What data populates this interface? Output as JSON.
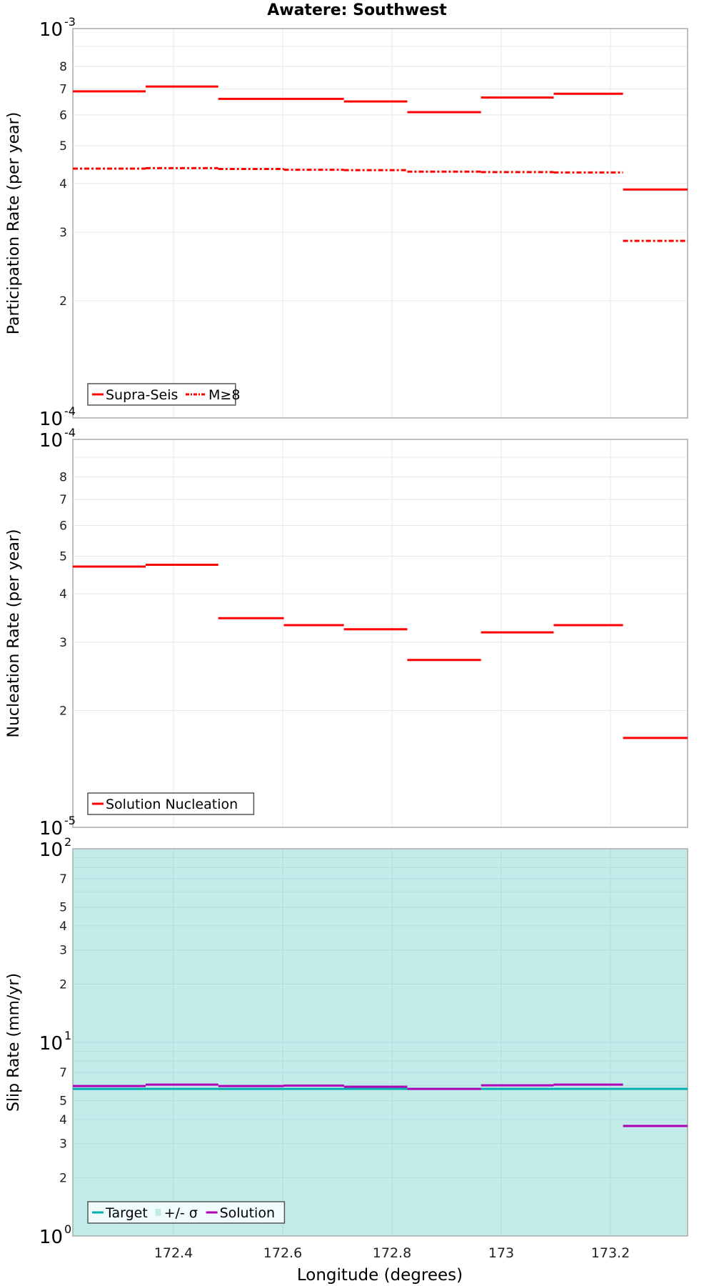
{
  "title": "Awatere: Southwest",
  "colors": {
    "red": "#ff0000",
    "teal": "#00b0b0",
    "magenta": "#b000b8",
    "band": "#c2ebea"
  },
  "chart_data": [
    {
      "type": "line",
      "step": true,
      "title": "Awatere: Southwest",
      "xlabel": "Longitude (degrees)",
      "ylabel": "Participation Rate (per year)",
      "yscale": "log",
      "ylim": [
        0.0001,
        0.001
      ],
      "xlim": [
        172.214,
        173.345
      ],
      "x_edges": [
        172.214,
        172.349,
        172.482,
        172.602,
        172.712,
        172.828,
        172.963,
        173.096,
        173.223,
        173.345
      ],
      "yticks": [
        "10^-4",
        "2",
        "3",
        "4",
        "5",
        "6",
        "7",
        "8",
        "10^-3"
      ],
      "grid": true,
      "legend_position": "lower left",
      "series": [
        {
          "name": "Supra-Seis",
          "style": "solid",
          "color": "#ff0000",
          "values": [
            0.00069,
            0.00071,
            0.00066,
            0.00066,
            0.00065,
            0.00061,
            0.000665,
            0.00068,
            0.000386
          ]
        },
        {
          "name": "M≥8",
          "style": "dash-dot",
          "color": "#ff0000",
          "values": [
            0.000437,
            0.000438,
            0.000436,
            0.000434,
            0.000433,
            0.000429,
            0.000428,
            0.000427,
            0.000285
          ]
        }
      ]
    },
    {
      "type": "line",
      "step": true,
      "xlabel": "Longitude (degrees)",
      "ylabel": "Nucleation Rate (per year)",
      "yscale": "log",
      "ylim": [
        1e-05,
        0.0001
      ],
      "x_edges": [
        172.214,
        172.349,
        172.482,
        172.602,
        172.712,
        172.828,
        172.963,
        173.096,
        173.223,
        173.345
      ],
      "yticks": [
        "10^-5",
        "2",
        "3",
        "4",
        "5",
        "6",
        "7",
        "8",
        "10^-4"
      ],
      "grid": true,
      "legend_position": "lower left",
      "series": [
        {
          "name": "Solution Nucleation",
          "style": "solid",
          "color": "#ff0000",
          "values": [
            4.7e-05,
            4.75e-05,
            3.46e-05,
            3.32e-05,
            3.24e-05,
            2.7e-05,
            3.18e-05,
            3.32e-05,
            1.7e-05
          ]
        }
      ]
    },
    {
      "type": "line",
      "step": true,
      "xlabel": "Longitude (degrees)",
      "ylabel": "Slip Rate (mm/yr)",
      "yscale": "log",
      "ylim": [
        1,
        100
      ],
      "x_edges": [
        172.214,
        172.349,
        172.482,
        172.602,
        172.712,
        172.828,
        172.963,
        173.096,
        173.223,
        173.345
      ],
      "xticks": [
        "172.4",
        "172.6",
        "172.8",
        "173",
        "173.2"
      ],
      "yticks": [
        "10^0",
        "2",
        "3",
        "4",
        "5",
        "7",
        "10^1",
        "2",
        "3",
        "4",
        "5",
        "7",
        "10^2"
      ],
      "grid": true,
      "legend_position": "lower left",
      "series": [
        {
          "name": "Target",
          "style": "solid",
          "color": "#00b0b0",
          "values": [
            5.75,
            5.75,
            5.75,
            5.75,
            5.75,
            5.75,
            5.75,
            5.75,
            5.75
          ]
        },
        {
          "name": "+/- σ",
          "style": "band",
          "color": "#c2ebea",
          "lower": 1,
          "upper": 100
        },
        {
          "name": "Solution",
          "style": "solid",
          "color": "#b000b8",
          "values": [
            5.95,
            6.05,
            5.95,
            5.98,
            5.9,
            5.75,
            6.0,
            6.05,
            3.7
          ]
        }
      ]
    }
  ],
  "panels": [
    {
      "ylabel": "Participation Rate (per year)",
      "legend": [
        "Supra-Seis",
        "M≥8"
      ]
    },
    {
      "ylabel": "Nucleation Rate (per year)",
      "legend": [
        "Solution Nucleation"
      ]
    },
    {
      "ylabel": "Slip Rate (mm/yr)",
      "legend": [
        "Target",
        "+/- σ",
        "Solution"
      ]
    }
  ],
  "xaxis": {
    "label": "Longitude (degrees)",
    "ticks": [
      "172.4",
      "172.6",
      "172.8",
      "173",
      "173.2"
    ]
  }
}
